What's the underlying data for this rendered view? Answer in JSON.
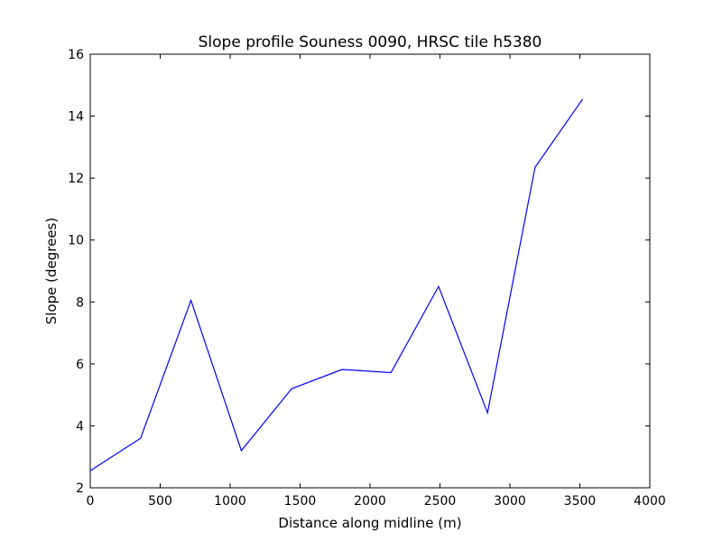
{
  "chart_data": {
    "type": "line",
    "title": "Slope profile Souness 0090, HRSC tile h5380",
    "xlabel": "Distance along midline (m)",
    "ylabel": "Slope (degrees)",
    "xlim": [
      0,
      4000
    ],
    "ylim": [
      2,
      16
    ],
    "xticks": [
      0,
      500,
      1000,
      1500,
      2000,
      2500,
      3000,
      3500,
      4000
    ],
    "yticks": [
      2,
      4,
      6,
      8,
      10,
      12,
      14,
      16
    ],
    "grid": false,
    "line_color": "#0000ff",
    "series": [
      {
        "x": [
          0,
          360,
          720,
          1080,
          1440,
          1800,
          2150,
          2490,
          2840,
          3180,
          3520
        ],
        "y": [
          2.55,
          3.6,
          8.05,
          3.2,
          5.2,
          5.82,
          5.72,
          8.5,
          4.42,
          12.35,
          14.55
        ]
      }
    ]
  }
}
